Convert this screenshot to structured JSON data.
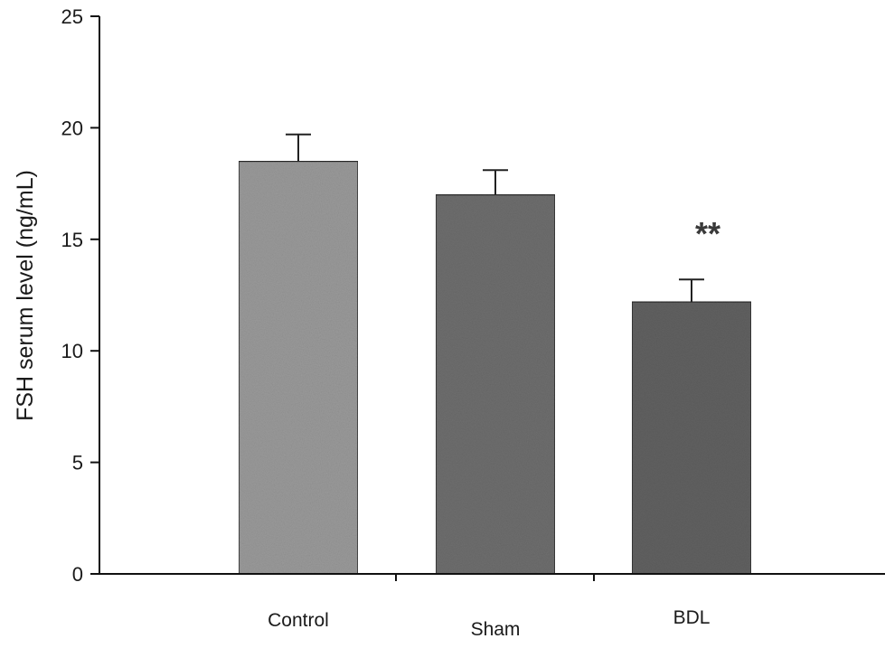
{
  "chart_data": {
    "type": "bar",
    "title": "",
    "xlabel": "",
    "ylabel": "FSH serum level (ng/mL)",
    "ylim": [
      0,
      25
    ],
    "yticks": [
      0,
      5,
      10,
      15,
      20,
      25
    ],
    "categories": [
      "Control",
      "Sham",
      "BDL"
    ],
    "values": [
      18.5,
      17.0,
      12.2
    ],
    "error_bars": [
      1.2,
      1.1,
      1.0
    ],
    "annotations": [
      {
        "category": "BDL",
        "text": "**"
      }
    ],
    "grid": false,
    "legend": "none",
    "colors": {
      "Control": "#9a9a9a",
      "Sham": "#6e6e6e",
      "BDL": "#616161"
    }
  }
}
